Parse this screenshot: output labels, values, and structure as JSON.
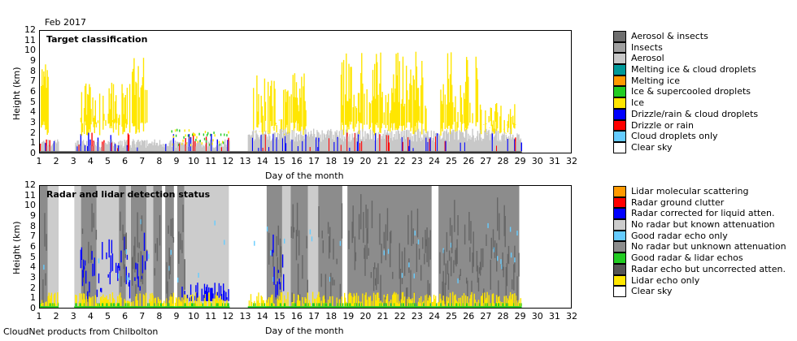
{
  "date_label": "Feb 2017",
  "footer": "CloudNet products from Chilbolton",
  "colors": {
    "ice": "#ffe600",
    "drizzle_cloud": "#0000ff",
    "drizzle_rain": "#ff0000",
    "aerosol": "#c8c8c8",
    "insects": "#a0a0a0",
    "aerosol_insects": "#6e6e6e",
    "ground": "#555555",
    "no_radar_known": "#cccccc",
    "no_radar_unknown": "#8c8c8c",
    "radar_uncorrected": "#666666",
    "good_radar_lidar": "#22cc22",
    "good_radar_only": "#66ccff",
    "lidar_only": "#ffe600"
  },
  "chart_data": [
    {
      "type": "heatmap",
      "title": "Target classification",
      "xlabel": "Day of the month",
      "ylabel": "Height (km)",
      "xlim": [
        1,
        32
      ],
      "ylim": [
        0,
        12
      ],
      "x_ticks": [
        "1",
        "2",
        "3",
        "4",
        "5",
        "6",
        "7",
        "8",
        "9",
        "10",
        "11",
        "12",
        "13",
        "14",
        "15",
        "16",
        "17",
        "18",
        "19",
        "20",
        "21",
        "22",
        "23",
        "24",
        "25",
        "26",
        "27",
        "28",
        "29",
        "30",
        "31",
        "32"
      ],
      "y_ticks": [
        "0",
        "1",
        "2",
        "3",
        "4",
        "5",
        "6",
        "7",
        "8",
        "9",
        "10",
        "11",
        "12"
      ],
      "data_gaps_days": [
        [
          2.1,
          3.0
        ],
        [
          12.05,
          13.1
        ],
        [
          29.05,
          32
        ]
      ],
      "legend": [
        {
          "label": "Aerosol & insects",
          "color": "#6e6e6e"
        },
        {
          "label": "Insects",
          "color": "#a0a0a0"
        },
        {
          "label": "Aerosol",
          "color": "#c8c8c8"
        },
        {
          "label": "Melting ice & cloud droplets",
          "color": "#009999"
        },
        {
          "label": "Melting ice",
          "color": "#ff9900"
        },
        {
          "label": "Ice & supercooled droplets",
          "color": "#22cc22"
        },
        {
          "label": "Ice",
          "color": "#ffe600"
        },
        {
          "label": "Drizzle/rain & cloud droplets",
          "color": "#0000ff"
        },
        {
          "label": "Drizzle or rain",
          "color": "#ff0000"
        },
        {
          "label": "Cloud droplets only",
          "color": "#66ccff"
        },
        {
          "label": "Clear sky",
          "color": "#ffffff"
        }
      ]
    },
    {
      "type": "heatmap",
      "title": "Radar and lidar detection status",
      "xlabel": "Day of the month",
      "ylabel": "Height (km)",
      "xlim": [
        1,
        32
      ],
      "ylim": [
        0,
        12
      ],
      "x_ticks": [
        "1",
        "2",
        "3",
        "4",
        "5",
        "6",
        "7",
        "8",
        "9",
        "10",
        "11",
        "12",
        "13",
        "14",
        "15",
        "16",
        "17",
        "18",
        "19",
        "20",
        "21",
        "22",
        "23",
        "24",
        "25",
        "26",
        "27",
        "28",
        "29",
        "30",
        "31",
        "32"
      ],
      "y_ticks": [
        "0",
        "1",
        "2",
        "3",
        "4",
        "5",
        "6",
        "7",
        "8",
        "9",
        "10",
        "11",
        "12"
      ],
      "data_gaps_days": [
        [
          2.1,
          3.0
        ],
        [
          12.05,
          13.1
        ],
        [
          29.05,
          32
        ]
      ],
      "legend": [
        {
          "label": "Lidar molecular scattering",
          "color": "#ff9900"
        },
        {
          "label": "Radar ground clutter",
          "color": "#ff0000"
        },
        {
          "label": "Radar corrected for liquid atten.",
          "color": "#0000ff"
        },
        {
          "label": "No radar but known attenuation",
          "color": "#cccccc"
        },
        {
          "label": "Good radar echo only",
          "color": "#66ccff"
        },
        {
          "label": "No radar but unknown attenuation",
          "color": "#8c8c8c"
        },
        {
          "label": "Good radar & lidar echos",
          "color": "#22cc22"
        },
        {
          "label": "Radar echo but uncorrected atten.",
          "color": "#555555"
        },
        {
          "label": "Lidar echo only",
          "color": "#ffe600"
        },
        {
          "label": "Clear sky",
          "color": "#ffffff"
        }
      ]
    }
  ]
}
